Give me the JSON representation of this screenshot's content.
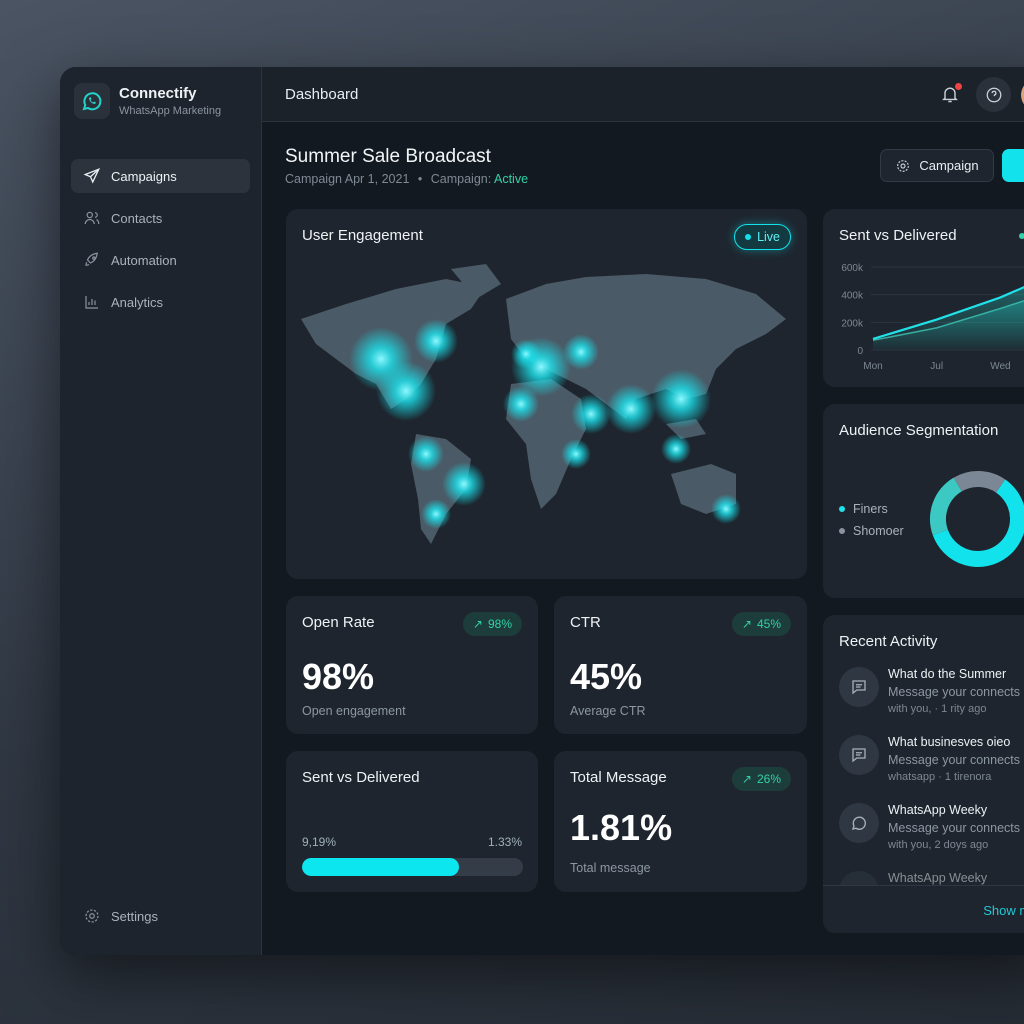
{
  "app": {
    "name": "Connectify",
    "subtitle": "WhatsApp Marketing",
    "logo_icon": "whatsapp-icon"
  },
  "sidebar": {
    "items": [
      {
        "label": "Campaigns",
        "icon": "send-icon",
        "active": true
      },
      {
        "label": "Contacts",
        "icon": "users-icon"
      },
      {
        "label": "Automation",
        "icon": "rocket-icon"
      },
      {
        "label": "Analytics",
        "icon": "bar-chart-icon"
      }
    ],
    "settings_label": "Settings"
  },
  "header": {
    "title": "Dashboard",
    "notification_dot": true
  },
  "page": {
    "title": "Summer Sale Broadcast",
    "meta_date": "Campaign Apr 1, 2021",
    "meta_sep": "•",
    "meta_status_label": "Campaign:",
    "meta_status": "Active",
    "campaign_button": "Campaign"
  },
  "map_card": {
    "title": "User Engagement",
    "live_label": "Live"
  },
  "open_rate": {
    "title": "Open Rate",
    "badge": "98%",
    "value": "98%",
    "caption": "Open engagement"
  },
  "ctr": {
    "title": "CTR",
    "badge": "45%",
    "value": "45%",
    "caption": "Average CTR"
  },
  "sent_delivered": {
    "title": "Sent vs Delivered",
    "left": "9,19%",
    "right": "1.33%",
    "progress": 0.71
  },
  "total_message": {
    "title": "Total Message",
    "badge": "26%",
    "value": "1.81%",
    "caption": "Total message"
  },
  "chart_data": {
    "type": "area",
    "title": "Sent vs Delivered",
    "categories": [
      "Mon",
      "Jul",
      "Wed",
      ""
    ],
    "yticks": [
      "600k",
      "400k",
      "200k",
      "0"
    ],
    "ylim": [
      0,
      600000
    ],
    "series": [
      {
        "values": [
          80000,
          220000,
          380000,
          580000
        ]
      },
      {
        "values": [
          70000,
          160000,
          300000,
          450000
        ]
      }
    ],
    "colors": [
      "#22e0e8",
      "#3aa89a"
    ]
  },
  "audience": {
    "title": "Audience Segmentation",
    "legend": [
      {
        "label": "Finers",
        "color": "#22e0e8"
      },
      {
        "label": "Shomoer",
        "color": "#8a94a0"
      }
    ],
    "segments": [
      {
        "value": 60,
        "color": "#12e2ec"
      },
      {
        "value": 22,
        "color": "#3cc9c4"
      },
      {
        "value": 18,
        "color": "#7b8794"
      }
    ]
  },
  "activity": {
    "title": "Recent Activity",
    "items": [
      {
        "icon": "message-icon",
        "title": "What do the Summer",
        "message": "Message your connects",
        "meta": "with you, · 1 rity ago"
      },
      {
        "icon": "message-icon",
        "title": "What businesves oieo",
        "message": "Message your connects",
        "meta": "whatsapp · 1 tirenora"
      },
      {
        "icon": "whatsapp-icon",
        "title": "WhatsApp Weeky",
        "message": "Message your connects",
        "meta": "with you, 2 doys ago"
      },
      {
        "icon": "whatsapp-icon",
        "title": "WhatsApp Weeky",
        "message": "",
        "meta": ""
      }
    ],
    "show_more": "Show more"
  },
  "colors": {
    "accent": "#12e2ec",
    "positive": "#34d1a8",
    "alert": "#ef4444"
  }
}
